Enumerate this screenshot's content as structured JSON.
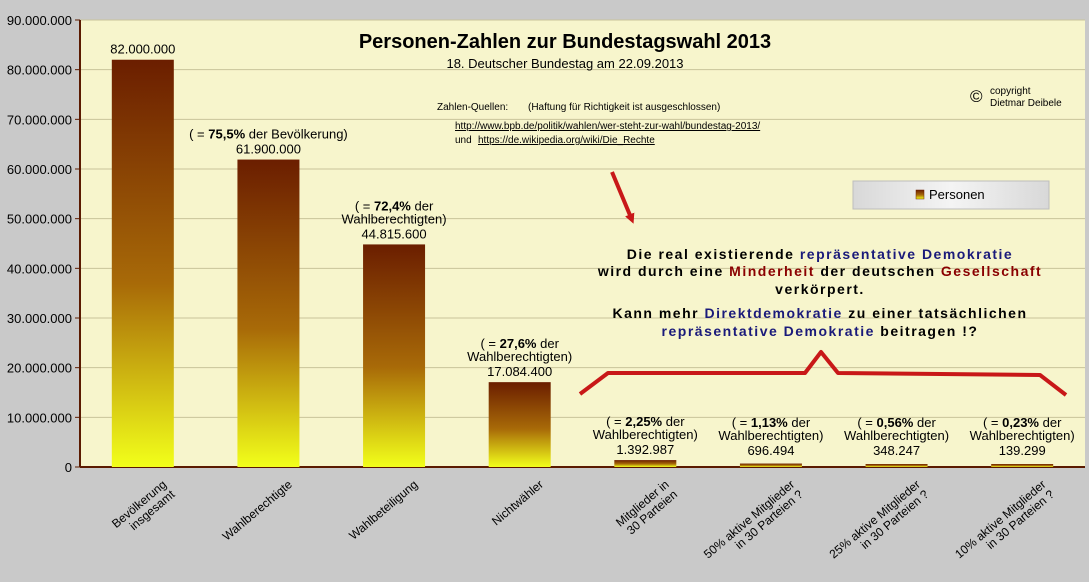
{
  "chart_data": {
    "type": "bar",
    "title": "Personen-Zahlen zur Bundestagswahl 2013",
    "subtitle": "18. Deutscher Bundestag am 22.09.2013",
    "ylim": [
      0,
      90000000
    ],
    "y_ticks": [
      "0",
      "10.000.000",
      "20.000.000",
      "30.000.000",
      "40.000.000",
      "50.000.000",
      "60.000.000",
      "70.000.000",
      "80.000.000",
      "90.000.000"
    ],
    "grid": true,
    "legend": {
      "position": "right",
      "entries": [
        "Personen"
      ]
    },
    "categories": [
      [
        "Bevölkerung",
        "insgesamt"
      ],
      [
        "Wahlberechtigte"
      ],
      [
        "Wahlbeteiligung"
      ],
      [
        "Nichtwähler"
      ],
      [
        "Mitglieder in",
        "30 Parteien"
      ],
      [
        "50% aktive Mitglieder",
        "in 30 Parteien ?"
      ],
      [
        "25% aktive Mitglieder",
        "in 30 Parteien ?"
      ],
      [
        "10% aktive Mitglieder",
        "in 30 Parteien ?"
      ]
    ],
    "series": [
      {
        "name": "Personen",
        "values": [
          82000000,
          61900000,
          44815600,
          17084400,
          1392987,
          696494,
          348247,
          139299
        ]
      }
    ],
    "value_labels": [
      "82.000.000",
      "61.900.000",
      "44.815.600",
      "17.084.400",
      "1.392.987",
      "696.494",
      "348.247",
      "139.299"
    ],
    "bar_annotations": [
      [],
      [
        {
          "pre": "( = ",
          "bold": "75,5%",
          "post": " der Bevölkerung)"
        }
      ],
      [
        {
          "pre": "( = ",
          "bold": "72,4%",
          "post": " der"
        },
        {
          "pre": "Wahlberechtigten)",
          "bold": "",
          "post": ""
        }
      ],
      [
        {
          "pre": "( = ",
          "bold": "27,6%",
          "post": " der"
        },
        {
          "pre": "Wahlberechtigten)",
          "bold": "",
          "post": ""
        }
      ],
      [
        {
          "pre": "( = ",
          "bold": "2,25%",
          "post": " der"
        },
        {
          "pre": "Wahlberechtigten)",
          "bold": "",
          "post": ""
        }
      ],
      [
        {
          "pre": "( = ",
          "bold": "1,13%",
          "post": " der"
        },
        {
          "pre": "Wahlberechtigten)",
          "bold": "",
          "post": ""
        }
      ],
      [
        {
          "pre": "( = ",
          "bold": "0,56%",
          "post": " der"
        },
        {
          "pre": "Wahlberechtigten)",
          "bold": "",
          "post": ""
        }
      ],
      [
        {
          "pre": "( = ",
          "bold": "0,23%",
          "post": " der"
        },
        {
          "pre": "Wahlberechtigten)",
          "bold": "",
          "post": ""
        }
      ]
    ]
  },
  "sources": {
    "label": "Zahlen-Quellen:",
    "disclaimer": "(Haftung für Richtigkeit ist ausgeschlossen)",
    "link1": "http://www.bpb.de/politik/wahlen/wer-steht-zur-wahl/bundestag-2013/",
    "and_word": "und",
    "link2": "https://de.wikipedia.org/wiki/Die_Rechte"
  },
  "copyright": {
    "symbol": "©",
    "line1": "copyright",
    "line2": "Dietmar Deibele"
  },
  "message": {
    "line1": [
      {
        "text": "Die real existierende ",
        "style": "dark"
      },
      {
        "text": "repräsentative Demokratie",
        "style": "blue"
      }
    ],
    "line2": [
      {
        "text": "wird durch eine ",
        "style": "dark"
      },
      {
        "text": "Minderheit",
        "style": "red"
      },
      {
        "text": " der deutschen ",
        "style": "dark"
      },
      {
        "text": "Gesellschaft",
        "style": "red"
      }
    ],
    "line3": [
      {
        "text": "verkörpert.",
        "style": "dark"
      }
    ],
    "line4": [
      {
        "text": "Kann mehr ",
        "style": "dark"
      },
      {
        "text": "Direktdemokratie",
        "style": "blue"
      },
      {
        "text": " zu einer tatsächlichen",
        "style": "dark"
      }
    ],
    "line5": [
      {
        "text": "repräsentative Demokratie",
        "style": "blue"
      },
      {
        "text": " beitragen !?",
        "style": "dark"
      }
    ]
  },
  "colors": {
    "plot_bg": "#f7f5cc",
    "page_bg": "#c9c9c9",
    "axis": "#5b1a00",
    "bar_top": "#6b1e00",
    "bar_bottom": "#f2ff1a",
    "arrow": "#c81818",
    "text_dark": "#000000",
    "text_blue": "#1a1a7a",
    "text_red": "#8a0000"
  }
}
